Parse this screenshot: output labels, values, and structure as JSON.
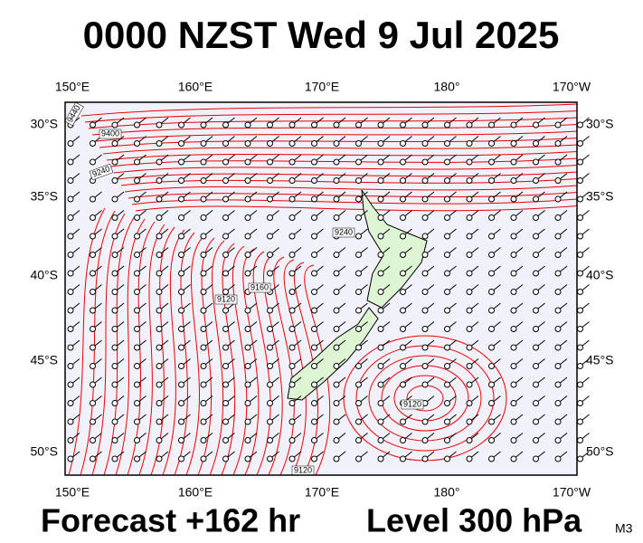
{
  "title": "0000 NZST Wed 9 Jul 2025",
  "footer": {
    "forecast": "Forecast +162 hr",
    "level": "Level 300 hPa",
    "model": "M3"
  },
  "axes": {
    "top": [
      "150°E",
      "160°E",
      "170°E",
      "180°",
      "170°W"
    ],
    "bottom": [
      "150°E",
      "160°E",
      "170°E",
      "180°",
      "170°W"
    ],
    "left": [
      "30°S",
      "35°S",
      "40°S",
      "45°S",
      "50°S"
    ],
    "right": [
      "30°S",
      "35°S",
      "40°S",
      "45°S",
      "50°S"
    ]
  },
  "contour_labels": [
    "9440",
    "9400",
    "9240",
    "9240",
    "9160",
    "9120",
    "9120",
    "9120"
  ]
}
